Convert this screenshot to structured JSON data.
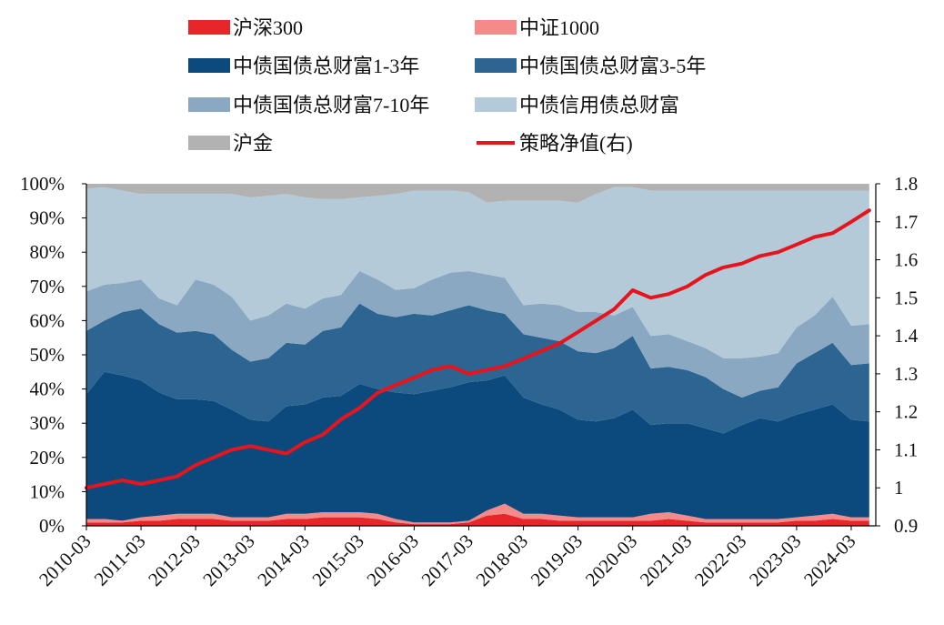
{
  "chart_data": {
    "type": "area",
    "title": "",
    "xlabel": "",
    "ylabel": "",
    "stack": "percent",
    "x_ticks": [
      "2010-03",
      "2011-03",
      "2012-03",
      "2013-03",
      "2014-03",
      "2015-03",
      "2016-03",
      "2017-03",
      "2018-03",
      "2019-03",
      "2020-03",
      "2021-03",
      "2022-03",
      "2023-03",
      "2024-03"
    ],
    "y_left_ticks": [
      "0%",
      "10%",
      "20%",
      "30%",
      "40%",
      "50%",
      "60%",
      "70%",
      "80%",
      "90%",
      "100%"
    ],
    "y_right_ticks": [
      "0.9",
      "1",
      "1.1",
      "1.2",
      "1.3",
      "1.4",
      "1.5",
      "1.6",
      "1.7",
      "1.8"
    ],
    "ylim_left": [
      0,
      100
    ],
    "ylim_right": [
      0.9,
      1.8
    ],
    "x_time": [
      2010.17,
      2010.5,
      2010.83,
      2011.17,
      2011.5,
      2011.83,
      2012.17,
      2012.5,
      2012.83,
      2013.17,
      2013.5,
      2013.83,
      2014.17,
      2014.5,
      2014.83,
      2015.17,
      2015.5,
      2015.83,
      2016.17,
      2016.5,
      2016.83,
      2017.17,
      2017.5,
      2017.83,
      2018.17,
      2018.5,
      2018.83,
      2019.17,
      2019.5,
      2019.83,
      2020.17,
      2020.5,
      2020.83,
      2021.17,
      2021.5,
      2021.83,
      2022.17,
      2022.5,
      2022.83,
      2023.17,
      2023.5,
      2023.83,
      2024.17,
      2024.5
    ],
    "series": [
      {
        "name": "沪深300",
        "color": "#e8262a",
        "axis": "left",
        "values": [
          1.0,
          1.0,
          1.0,
          1.5,
          1.5,
          2.0,
          2.0,
          2.0,
          1.5,
          1.5,
          1.5,
          2.0,
          2.0,
          2.5,
          2.5,
          2.5,
          2.0,
          1.0,
          0.5,
          0.5,
          0.5,
          1.0,
          3.0,
          3.5,
          2.0,
          2.0,
          1.5,
          1.5,
          1.5,
          1.5,
          1.5,
          1.5,
          2.0,
          1.5,
          1.0,
          1.0,
          1.0,
          1.0,
          1.0,
          1.5,
          1.5,
          2.0,
          1.5,
          1.5
        ]
      },
      {
        "name": "中证1000",
        "color": "#f48a8a",
        "axis": "left",
        "values": [
          1.0,
          1.0,
          0.5,
          1.0,
          1.5,
          1.5,
          1.5,
          1.5,
          1.0,
          1.0,
          1.0,
          1.5,
          1.5,
          1.5,
          1.5,
          1.5,
          1.5,
          1.0,
          0.5,
          0.5,
          0.5,
          0.5,
          1.5,
          3.0,
          1.5,
          1.5,
          1.5,
          1.0,
          1.0,
          1.0,
          1.0,
          2.0,
          2.0,
          1.5,
          1.0,
          1.0,
          1.0,
          1.0,
          1.0,
          1.0,
          1.5,
          1.5,
          1.0,
          1.0
        ]
      },
      {
        "name": "中债国债总财富1-3年",
        "color": "#0c4a7e",
        "axis": "left",
        "values": [
          36.5,
          43.0,
          42.5,
          40.0,
          36.0,
          33.5,
          33.5,
          33.0,
          31.5,
          28.5,
          28.0,
          31.5,
          32.0,
          33.5,
          34.0,
          37.5,
          36.5,
          37.0,
          37.5,
          38.5,
          39.5,
          40.5,
          38.0,
          37.5,
          34.0,
          32.0,
          31.0,
          28.5,
          28.0,
          29.0,
          31.5,
          26.0,
          26.0,
          27.0,
          26.5,
          25.0,
          27.5,
          29.5,
          28.5,
          30.0,
          31.0,
          32.0,
          28.5,
          28.0
        ]
      },
      {
        "name": "中债国债总财富3-5年",
        "color": "#2d6592",
        "axis": "left",
        "values": [
          18.5,
          15.0,
          18.5,
          21.0,
          20.0,
          19.5,
          20.0,
          19.5,
          17.5,
          17.0,
          18.5,
          18.5,
          17.5,
          19.5,
          20.0,
          23.5,
          22.0,
          22.0,
          23.5,
          22.0,
          22.5,
          22.5,
          20.5,
          18.0,
          18.5,
          19.5,
          20.0,
          20.0,
          20.0,
          20.5,
          21.5,
          16.5,
          16.5,
          15.5,
          15.0,
          13.0,
          8.0,
          8.0,
          10.0,
          15.0,
          16.5,
          18.0,
          16.0,
          17.0
        ]
      },
      {
        "name": "中债国债总财富7-10年",
        "color": "#8aa8c1",
        "axis": "left",
        "values": [
          11.5,
          10.5,
          8.5,
          8.5,
          7.5,
          8.0,
          15.0,
          14.5,
          15.5,
          12.0,
          12.5,
          11.5,
          10.5,
          9.5,
          9.5,
          9.5,
          10.0,
          8.0,
          7.5,
          10.5,
          11.0,
          10.0,
          10.5,
          10.5,
          8.5,
          10.0,
          10.5,
          11.5,
          12.0,
          9.5,
          8.5,
          9.5,
          9.5,
          8.5,
          8.5,
          9.0,
          11.5,
          10.0,
          10.0,
          10.5,
          11.0,
          13.5,
          11.5,
          11.5
        ]
      },
      {
        "name": "中债信用债总财富",
        "color": "#b4cad9",
        "axis": "left",
        "values": [
          30.0,
          28.5,
          27.0,
          25.0,
          30.5,
          32.5,
          25.0,
          26.5,
          30.0,
          36.0,
          35.0,
          32.0,
          32.5,
          29.0,
          28.0,
          21.5,
          24.5,
          28.0,
          28.5,
          26.0,
          24.0,
          23.0,
          21.0,
          22.5,
          30.5,
          30.0,
          30.5,
          32.0,
          34.5,
          37.5,
          35.0,
          42.5,
          42.0,
          44.0,
          46.0,
          49.0,
          49.0,
          48.5,
          47.5,
          40.0,
          36.5,
          31.0,
          39.5,
          39.0
        ]
      },
      {
        "name": "沪金",
        "color": "#b2b2b2",
        "axis": "left",
        "values": [
          1.5,
          1.0,
          2.0,
          3.0,
          3.0,
          3.0,
          3.0,
          3.0,
          3.0,
          4.0,
          3.5,
          3.0,
          4.0,
          4.5,
          4.5,
          4.0,
          3.5,
          3.0,
          2.0,
          2.0,
          2.0,
          2.5,
          5.5,
          5.0,
          5.0,
          5.0,
          5.0,
          5.5,
          3.0,
          1.0,
          1.0,
          2.0,
          2.0,
          2.0,
          2.0,
          2.0,
          2.0,
          2.0,
          2.0,
          2.0,
          2.0,
          2.0,
          2.0,
          2.0
        ]
      },
      {
        "name": "策略净值(右)",
        "color": "#e6141c",
        "axis": "right",
        "kind": "line",
        "values": [
          1.0,
          1.01,
          1.02,
          1.01,
          1.02,
          1.03,
          1.06,
          1.08,
          1.1,
          1.11,
          1.1,
          1.09,
          1.12,
          1.14,
          1.18,
          1.21,
          1.25,
          1.27,
          1.29,
          1.31,
          1.32,
          1.3,
          1.31,
          1.32,
          1.34,
          1.36,
          1.38,
          1.41,
          1.44,
          1.47,
          1.52,
          1.5,
          1.51,
          1.53,
          1.56,
          1.58,
          1.59,
          1.61,
          1.62,
          1.64,
          1.66,
          1.67,
          1.7,
          1.73
        ]
      }
    ],
    "legend": [
      "沪深300",
      "中证1000",
      "中债国债总财富1-3年",
      "中债国债总财富3-5年",
      "中债国债总财富7-10年",
      "中债信用债总财富",
      "沪金",
      "策略净值(右)"
    ],
    "legend_position": "top",
    "grid": false
  }
}
